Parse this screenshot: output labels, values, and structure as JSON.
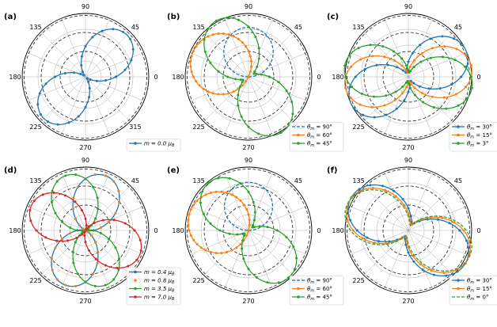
{
  "figure": {
    "angle_labels": [
      "90",
      "45",
      "0",
      "315",
      "270",
      "225",
      "180",
      "135"
    ]
  },
  "colors": {
    "blue": "#1f77b4",
    "orange": "#ff7f0e",
    "green": "#2ca02c",
    "red": "#d62728",
    "ring_dashed": "#333333",
    "grid": "#b0b0b0"
  },
  "chart_data": [
    {
      "panel": "(a)",
      "type": "polar-line",
      "title": "(a)",
      "r_range": [
        0,
        1
      ],
      "inner_dashed_rings": [
        0.4,
        0.7
      ],
      "outer_dashed_ring": 1.0,
      "legend_position": "lower-right",
      "series": [
        {
          "name": "m = 0.0 μB",
          "label_main": "m = 0.0 ",
          "label_unit": "μ",
          "label_sub": "B",
          "color": "blue",
          "style": "solid",
          "markers": true,
          "model": {
            "kind": "cos2",
            "amp": 0.9,
            "axis_deg": 45,
            "base": 0.03
          }
        }
      ]
    },
    {
      "panel": "(b)",
      "type": "polar-line",
      "title": "(b)",
      "r_range": [
        0,
        1
      ],
      "inner_dashed_rings": [
        0.4,
        0.7
      ],
      "outer_dashed_ring": 1.0,
      "legend_position": "lower-right",
      "series": [
        {
          "name": "θm = 90°",
          "label_main": "θ",
          "label_sub": "m",
          "label_rest": " = 90°",
          "color": "blue",
          "style": "dashed",
          "markers": false,
          "model": {
            "kind": "circle",
            "diam": 0.78,
            "axis_deg": 90
          }
        },
        {
          "name": "θm = 60°",
          "label_main": "θ",
          "label_sub": "m",
          "label_rest": " = 60°",
          "color": "orange",
          "style": "solid",
          "markers": true,
          "model": {
            "kind": "circle",
            "diam": 0.96,
            "axis_deg": 155
          }
        },
        {
          "name": "θm = 45°",
          "label_main": "θ",
          "label_sub": "m",
          "label_rest": " = 45°",
          "color": "green",
          "style": "solid",
          "markers": true,
          "model": {
            "kind": "cos2",
            "amp": 0.92,
            "axis_deg": 120,
            "base": 0.1
          }
        }
      ]
    },
    {
      "panel": "(c)",
      "type": "polar-line",
      "title": "(c)",
      "r_range": [
        0,
        1
      ],
      "inner_dashed_rings": [
        0.4,
        0.7
      ],
      "outer_dashed_ring": 1.0,
      "legend_position": "lower-right",
      "series": [
        {
          "name": "θm = 30°",
          "label_main": "θ",
          "label_sub": "m",
          "label_rest": " = 30°",
          "color": "blue",
          "style": "solid",
          "markers": true,
          "model": {
            "kind": "cos2",
            "amp": 0.93,
            "axis_deg": 25,
            "base": 0.07
          }
        },
        {
          "name": "θm = 15°",
          "label_main": "θ",
          "label_sub": "m",
          "label_rest": " = 15°",
          "color": "orange",
          "style": "solid",
          "markers": true,
          "model": {
            "kind": "cos2",
            "amp": 0.94,
            "axis_deg": 8,
            "base": 0.07
          }
        },
        {
          "name": "θm = 3°",
          "label_main": "θ",
          "label_sub": "m",
          "label_rest": " = 3°",
          "color": "green",
          "style": "solid",
          "markers": true,
          "model": {
            "kind": "cos2",
            "amp": 0.95,
            "axis_deg": -10,
            "base": 0.07
          }
        }
      ]
    },
    {
      "panel": "(d)",
      "type": "polar-line",
      "title": "(d)",
      "r_range": [
        0,
        1
      ],
      "inner_dashed_rings": [
        0.4,
        0.7
      ],
      "outer_dashed_ring": 1.0,
      "legend_position": "lower-right",
      "series": [
        {
          "name": "m = 0.4 μB",
          "label_main": "m = 0.4 ",
          "label_unit": "μ",
          "label_sub": "B",
          "color": "blue",
          "style": "solid",
          "markers": true,
          "model": {
            "kind": "cos2",
            "amp": 0.9,
            "axis_deg": 70,
            "base": 0.02
          }
        },
        {
          "name": "m = 0.8 μB",
          "label_main": "m = 0.8 ",
          "label_unit": "μ",
          "label_sub": "B",
          "color": "orange",
          "style": "dotted",
          "markers": true,
          "model": {
            "kind": "cos2",
            "amp": 0.9,
            "axis_deg": 70,
            "base": 0.02
          }
        },
        {
          "name": "m = 3.5 μB",
          "label_main": "m = 3.5 ",
          "label_unit": "μ",
          "label_sub": "B",
          "color": "green",
          "style": "solid",
          "markers": true,
          "model": {
            "kind": "cos2",
            "amp": 0.9,
            "axis_deg": 110,
            "base": 0.02
          }
        },
        {
          "name": "m = 7.0 μB",
          "label_main": "m = 7.0 ",
          "label_unit": "μ",
          "label_sub": "B",
          "color": "red",
          "style": "solid",
          "markers": true,
          "model": {
            "kind": "cos2",
            "amp": 0.92,
            "axis_deg": 155,
            "base": 0.02
          }
        }
      ]
    },
    {
      "panel": "(e)",
      "type": "polar-line",
      "title": "(e)",
      "r_range": [
        0,
        1
      ],
      "inner_dashed_rings": [
        0.4,
        0.7
      ],
      "outer_dashed_ring": 1.0,
      "legend_position": "lower-right",
      "series": [
        {
          "name": "θm = 90°",
          "label_main": "θ",
          "label_sub": "m",
          "label_rest": " = 90°",
          "color": "blue",
          "style": "dashed",
          "markers": false,
          "model": {
            "kind": "circle",
            "diam": 0.76,
            "axis_deg": 90
          }
        },
        {
          "name": "θm = 60°",
          "label_main": "θ",
          "label_sub": "m",
          "label_rest": " = 60°",
          "color": "orange",
          "style": "solid",
          "markers": true,
          "model": {
            "kind": "circle",
            "diam": 0.97,
            "axis_deg": 165
          }
        },
        {
          "name": "θm = 45°",
          "label_main": "θ",
          "label_sub": "m",
          "label_rest": " = 45°",
          "color": "green",
          "style": "solid",
          "markers": true,
          "model": {
            "kind": "cos2",
            "amp": 0.9,
            "axis_deg": 130,
            "base": 0.08
          }
        }
      ]
    },
    {
      "panel": "(f)",
      "type": "polar-line",
      "title": "(f)",
      "r_range": [
        0,
        1
      ],
      "inner_dashed_rings": [
        0.4,
        0.7
      ],
      "outer_dashed_ring": 1.0,
      "legend_position": "lower-right",
      "series": [
        {
          "name": "θm = 30°",
          "label_main": "θ",
          "label_sub": "m",
          "label_rest": " = 30°",
          "color": "blue",
          "style": "solid",
          "markers": true,
          "model": {
            "kind": "cos2",
            "amp": 0.92,
            "axis_deg": 150,
            "base": 0.12
          }
        },
        {
          "name": "θm = 15°",
          "label_main": "θ",
          "label_sub": "m",
          "label_rest": " = 15°",
          "color": "orange",
          "style": "solid",
          "markers": true,
          "model": {
            "kind": "cos2",
            "amp": 0.94,
            "axis_deg": 155,
            "base": 0.1
          }
        },
        {
          "name": "θm = 0°",
          "label_main": "θ",
          "label_sub": "m",
          "label_rest": " = 0°",
          "color": "green",
          "style": "dashed",
          "markers": false,
          "model": {
            "kind": "cos2",
            "amp": 0.97,
            "axis_deg": 158,
            "base": 0.08
          }
        }
      ]
    }
  ]
}
